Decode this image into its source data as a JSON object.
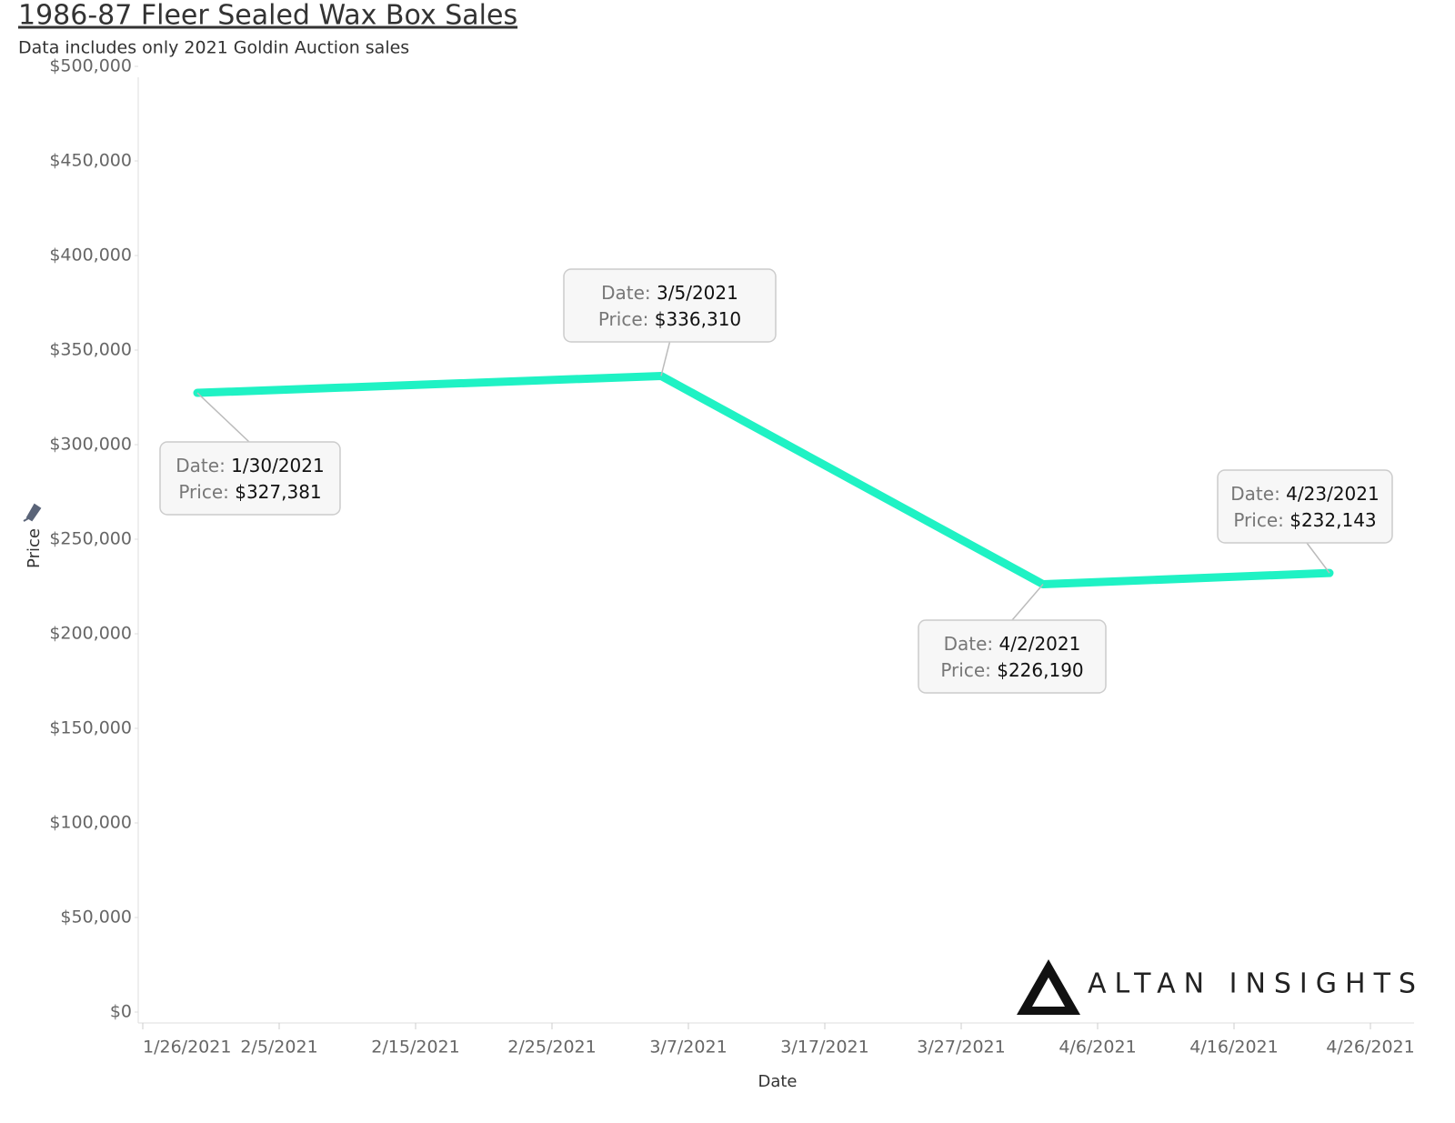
{
  "chart_data": {
    "type": "line",
    "title": "1986-87 Fleer Sealed Wax Box Sales",
    "subtitle": "Data includes only 2021 Goldin Auction sales",
    "x_label": "Date",
    "y_label": "Price",
    "x": [
      "1/30/2021",
      "3/5/2021",
      "4/2/2021",
      "4/23/2021"
    ],
    "series": [
      {
        "name": "Price",
        "color": "#1ff2c4",
        "values": [
          327381,
          336310,
          226190,
          232143
        ],
        "value_labels": [
          "$327,381",
          "$336,310",
          "$226,190",
          "$232,143"
        ]
      }
    ],
    "tooltip_labels": [
      "Date:",
      "Price:"
    ],
    "xlim": [
      "1/26/2021",
      "4/29/2021"
    ],
    "xticks": [
      "1/26/2021",
      "2/5/2021",
      "2/15/2021",
      "2/25/2021",
      "3/7/2021",
      "3/17/2021",
      "3/27/2021",
      "4/6/2021",
      "4/16/2021",
      "4/26/2021"
    ],
    "ylim": [
      0,
      500000
    ],
    "yticks": [
      {
        "value": 0,
        "label": "$0"
      },
      {
        "value": 50000,
        "label": "$50,000"
      },
      {
        "value": 100000,
        "label": "$100,000"
      },
      {
        "value": 150000,
        "label": "$150,000"
      },
      {
        "value": 200000,
        "label": "$200,000"
      },
      {
        "value": 250000,
        "label": "$250,000"
      },
      {
        "value": 300000,
        "label": "$300,000"
      },
      {
        "value": 350000,
        "label": "$350,000"
      },
      {
        "value": 400000,
        "label": "$400,000"
      },
      {
        "value": 450000,
        "label": "$450,000"
      },
      {
        "value": 500000,
        "label": "$500,000"
      }
    ],
    "grid": false,
    "logo": "ALTAN INSIGHTS"
  }
}
